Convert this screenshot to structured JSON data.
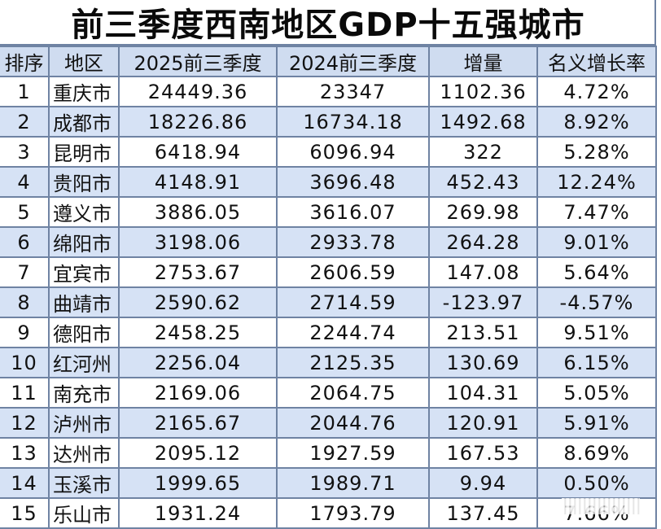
{
  "title": "前三季度西南地区GDP十五强城市",
  "table": {
    "headers": [
      "排序",
      "地区",
      "2025前三季度",
      "2024前三季度",
      "增量",
      "名义增长率"
    ],
    "rows": [
      [
        "1",
        "重庆市",
        "24449.36",
        "23347",
        "1102.36",
        "4.72%"
      ],
      [
        "2",
        "成都市",
        "18226.86",
        "16734.18",
        "1492.68",
        "8.92%"
      ],
      [
        "3",
        "昆明市",
        "6418.94",
        "6096.94",
        "322",
        "5.28%"
      ],
      [
        "4",
        "贵阳市",
        "4148.91",
        "3696.48",
        "452.43",
        "12.24%"
      ],
      [
        "5",
        "遵义市",
        "3886.05",
        "3616.07",
        "269.98",
        "7.47%"
      ],
      [
        "6",
        "绵阳市",
        "3198.06",
        "2933.78",
        "264.28",
        "9.01%"
      ],
      [
        "7",
        "宜宾市",
        "2753.67",
        "2606.59",
        "147.08",
        "5.64%"
      ],
      [
        "8",
        "曲靖市",
        "2590.62",
        "2714.59",
        "-123.97",
        "-4.57%"
      ],
      [
        "9",
        "德阳市",
        "2458.25",
        "2244.74",
        "213.51",
        "9.51%"
      ],
      [
        "10",
        "红河州",
        "2256.04",
        "2125.35",
        "130.69",
        "6.15%"
      ],
      [
        "11",
        "南充市",
        "2169.06",
        "2064.75",
        "104.31",
        "5.05%"
      ],
      [
        "12",
        "泸州市",
        "2165.67",
        "2044.76",
        "120.91",
        "5.91%"
      ],
      [
        "13",
        "达州市",
        "2095.12",
        "1927.59",
        "167.53",
        "8.69%"
      ],
      [
        "14",
        "玉溪市",
        "1999.65",
        "1989.71",
        "9.94",
        "0.50%"
      ],
      [
        "15",
        "乐山市",
        "1931.24",
        "1793.79",
        "137.45",
        "7.66%"
      ]
    ]
  },
  "colors": {
    "header_bg": "#cfdcf0",
    "stripe_bg": "#d6e2f5",
    "border": "#6f83a3"
  }
}
